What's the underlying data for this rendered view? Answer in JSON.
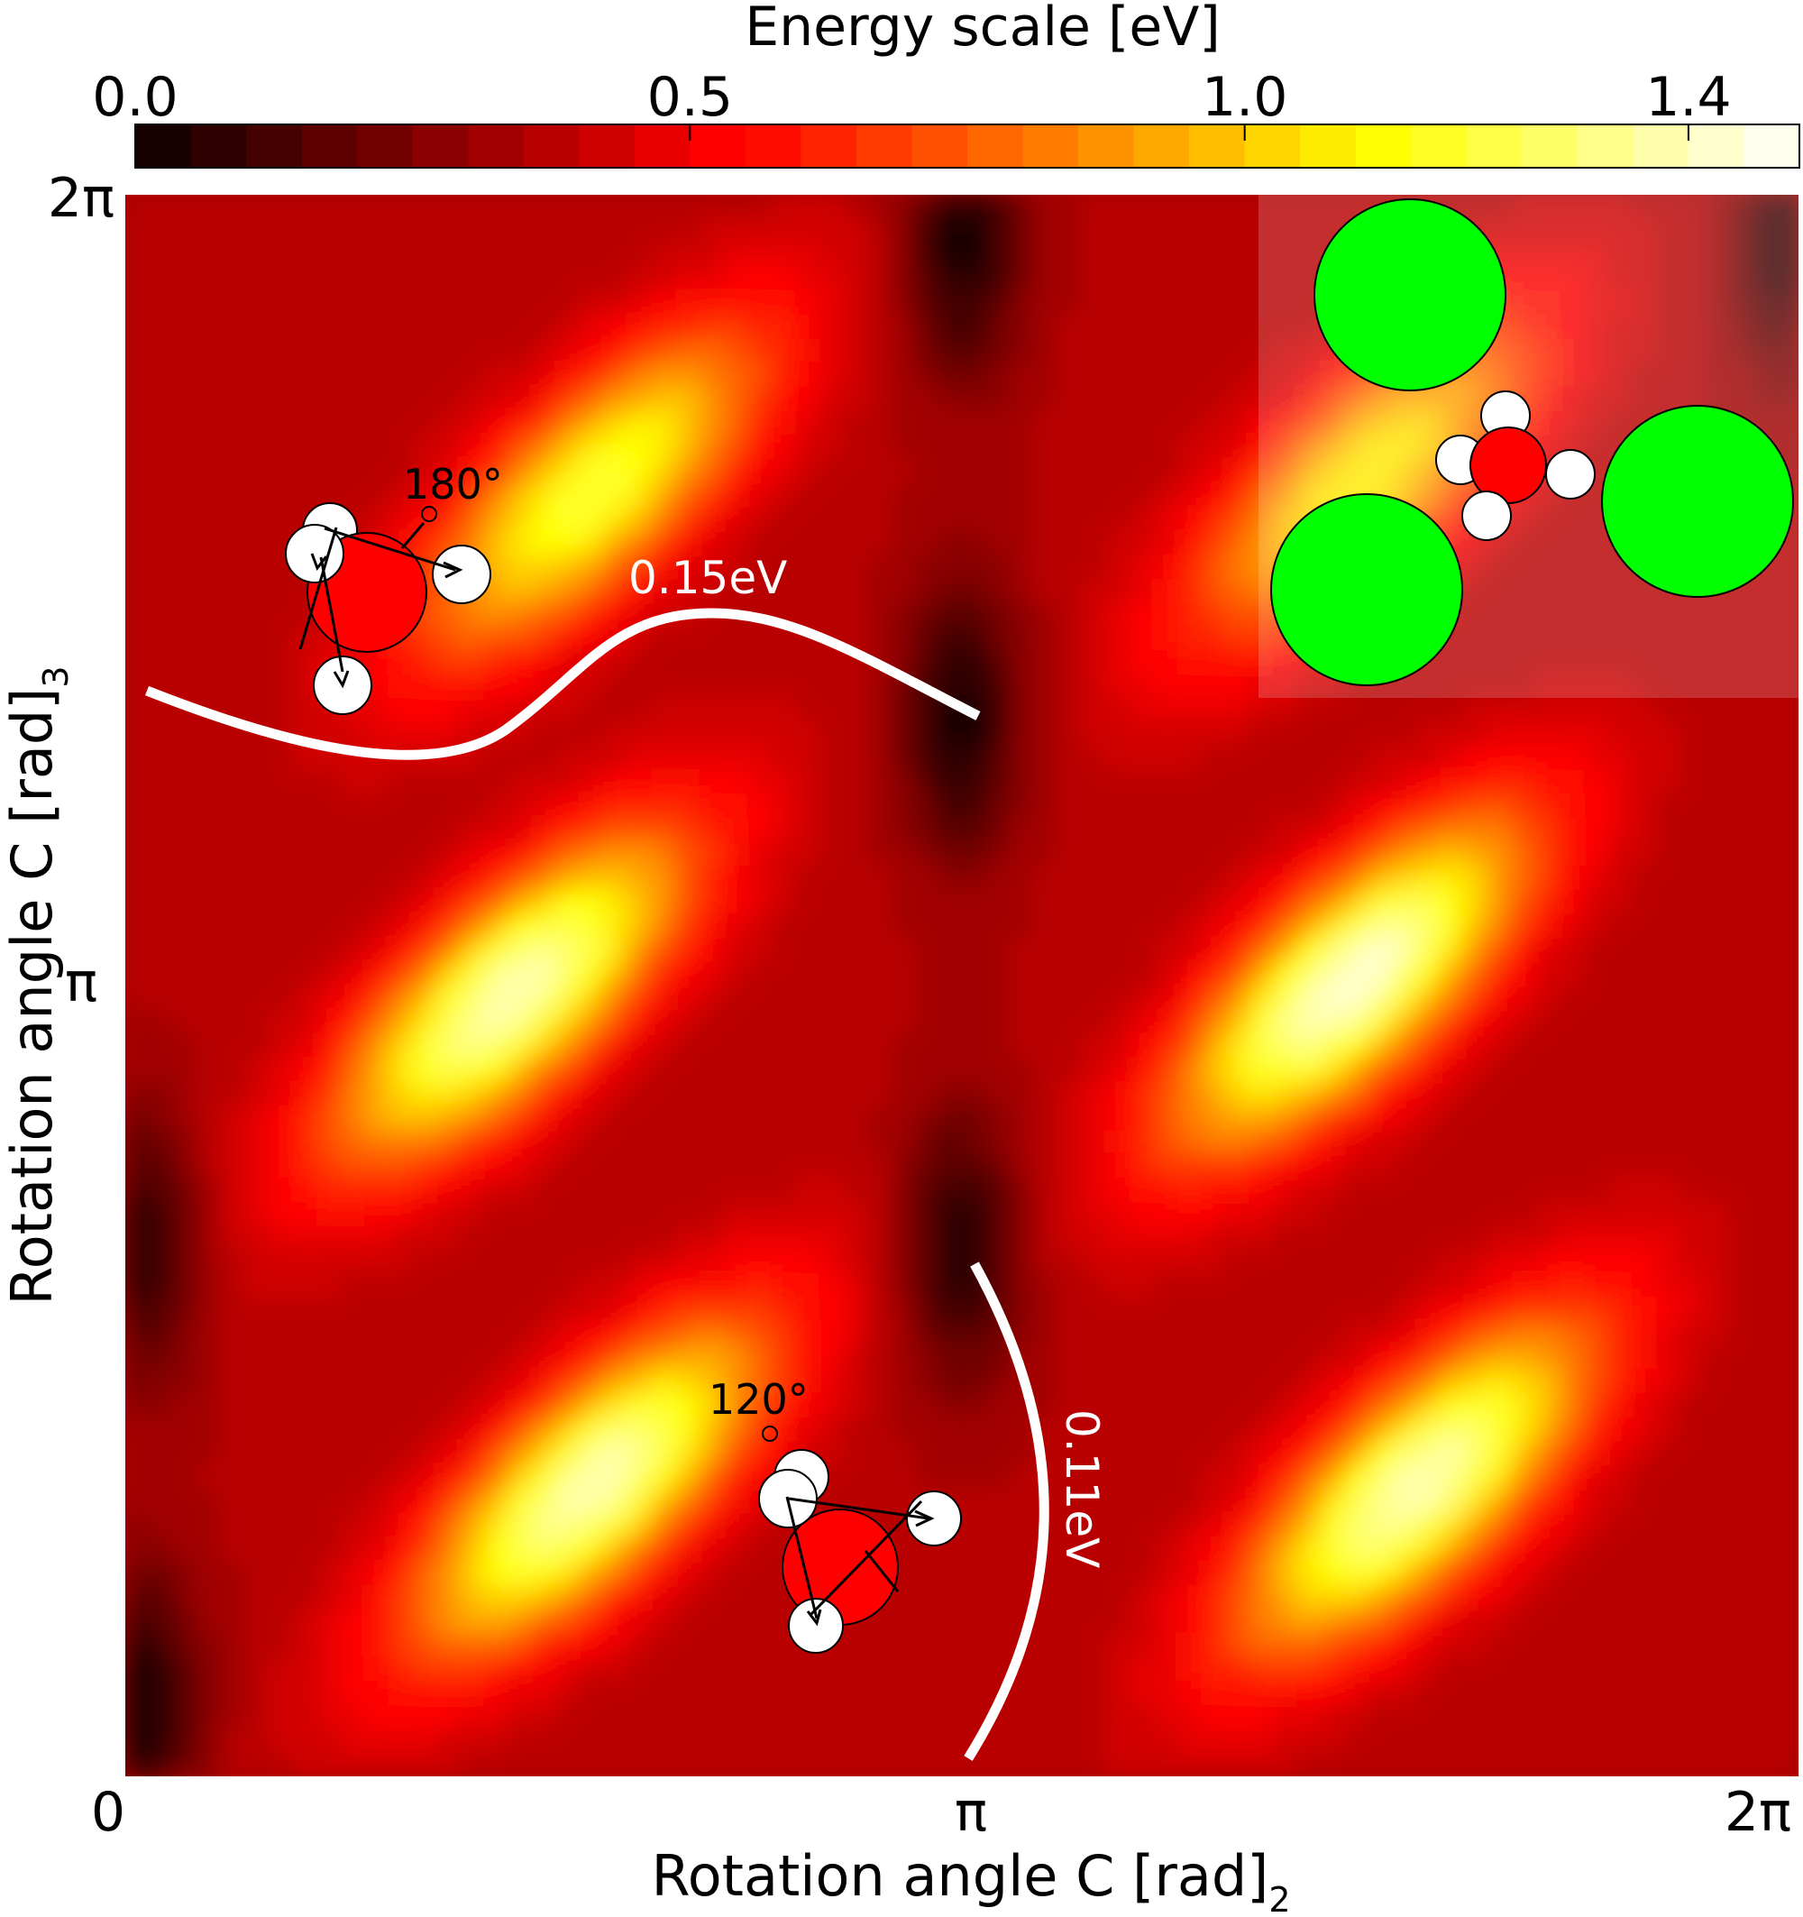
{
  "chart_data": {
    "type": "heatmap",
    "title": "",
    "colorbar": {
      "label": "Energy scale [eV]",
      "ticks": [
        "0.0",
        "0.5",
        "1.0",
        "1.4"
      ],
      "tick_values": [
        0.0,
        0.5,
        1.0,
        1.4
      ],
      "range": [
        0.0,
        1.5
      ],
      "colormap": "hot",
      "levels": 30
    },
    "xaxis": {
      "label_main": "Rotation angle C [rad]",
      "label_sub": "2",
      "ticks": [
        "0",
        "π",
        "2π"
      ],
      "range": [
        0,
        6.2832
      ]
    },
    "yaxis": {
      "label_main": "Rotation angle C [rad]",
      "label_sub": "3",
      "ticks": [
        "π",
        "2π"
      ],
      "range": [
        0,
        6.2832
      ]
    },
    "maxima": [
      {
        "x": 1.75,
        "y": 5.1,
        "energy": 1.2
      },
      {
        "x": 1.45,
        "y": 3.1,
        "energy": 1.4
      },
      {
        "x": 1.75,
        "y": 1.15,
        "energy": 1.4
      },
      {
        "x": 4.6,
        "y": 3.15,
        "energy": 1.45
      },
      {
        "x": 4.85,
        "y": 1.15,
        "energy": 1.4
      },
      {
        "x": 4.65,
        "y": 5.15,
        "energy": 1.1
      }
    ],
    "minima": [
      {
        "x": 3.14,
        "y": 4.2,
        "energy": 0.02
      },
      {
        "x": 3.14,
        "y": 2.1,
        "energy": 0.03
      },
      {
        "x": 0.05,
        "y": 2.1,
        "energy": 0.05
      },
      {
        "x": 0.05,
        "y": 0.3,
        "energy": 0.02
      },
      {
        "x": 3.14,
        "y": 6.1,
        "energy": 0.02
      },
      {
        "x": 6.25,
        "y": 6.1,
        "energy": 0.05
      }
    ],
    "annotations": [
      {
        "text": "0.15eV",
        "path": "horizontal barrier"
      },
      {
        "text": "0.11eV",
        "path": "vertical barrier"
      },
      {
        "text": "180°",
        "label": "rotation"
      },
      {
        "text": "120°",
        "label": "rotation"
      }
    ]
  },
  "colors": {
    "atom_green": "#00ff00",
    "atom_red": "#ff0000",
    "atom_white": "#ffffff",
    "path_white": "#ffffff"
  }
}
